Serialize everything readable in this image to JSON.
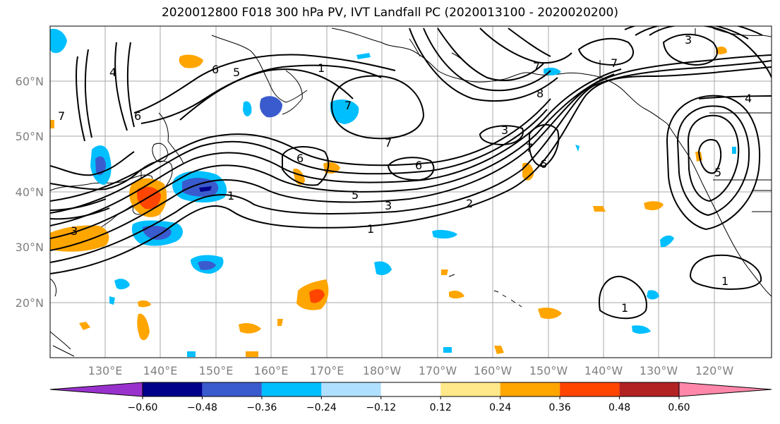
{
  "title": "2020012800 F018 300 hPa PV, IVT Landfall PC (2020013100 - 2020020200)",
  "map": {
    "lon_ticks": [
      "130°E",
      "140°E",
      "150°E",
      "160°E",
      "170°E",
      "180°W",
      "170°W",
      "160°W",
      "150°W",
      "140°W",
      "130°W",
      "120°W"
    ],
    "lat_ticks": [
      "60°N",
      "50°N",
      "40°N",
      "30°N",
      "20°N"
    ],
    "contour_labels": [
      "1",
      "1",
      "1",
      "1",
      "1",
      "2",
      "3",
      "3",
      "3",
      "3",
      "4",
      "4",
      "5",
      "5",
      "5",
      "6",
      "6",
      "6",
      "6",
      "6",
      "7",
      "7",
      "7",
      "7",
      "7",
      "7",
      "8"
    ]
  },
  "colorbar": {
    "tick_labels": [
      "−0.60",
      "−0.48",
      "−0.36",
      "−0.24",
      "−0.12",
      "0.12",
      "0.24",
      "0.36",
      "0.48",
      "0.60"
    ],
    "colors": [
      "#9932cc",
      "#00008b",
      "#3a5bcd",
      "#00bfff",
      "#b0e0ff",
      "#ffffff",
      "#ffe88a",
      "#ffa500",
      "#ff4500",
      "#b22222",
      "#ff88aa"
    ]
  }
}
